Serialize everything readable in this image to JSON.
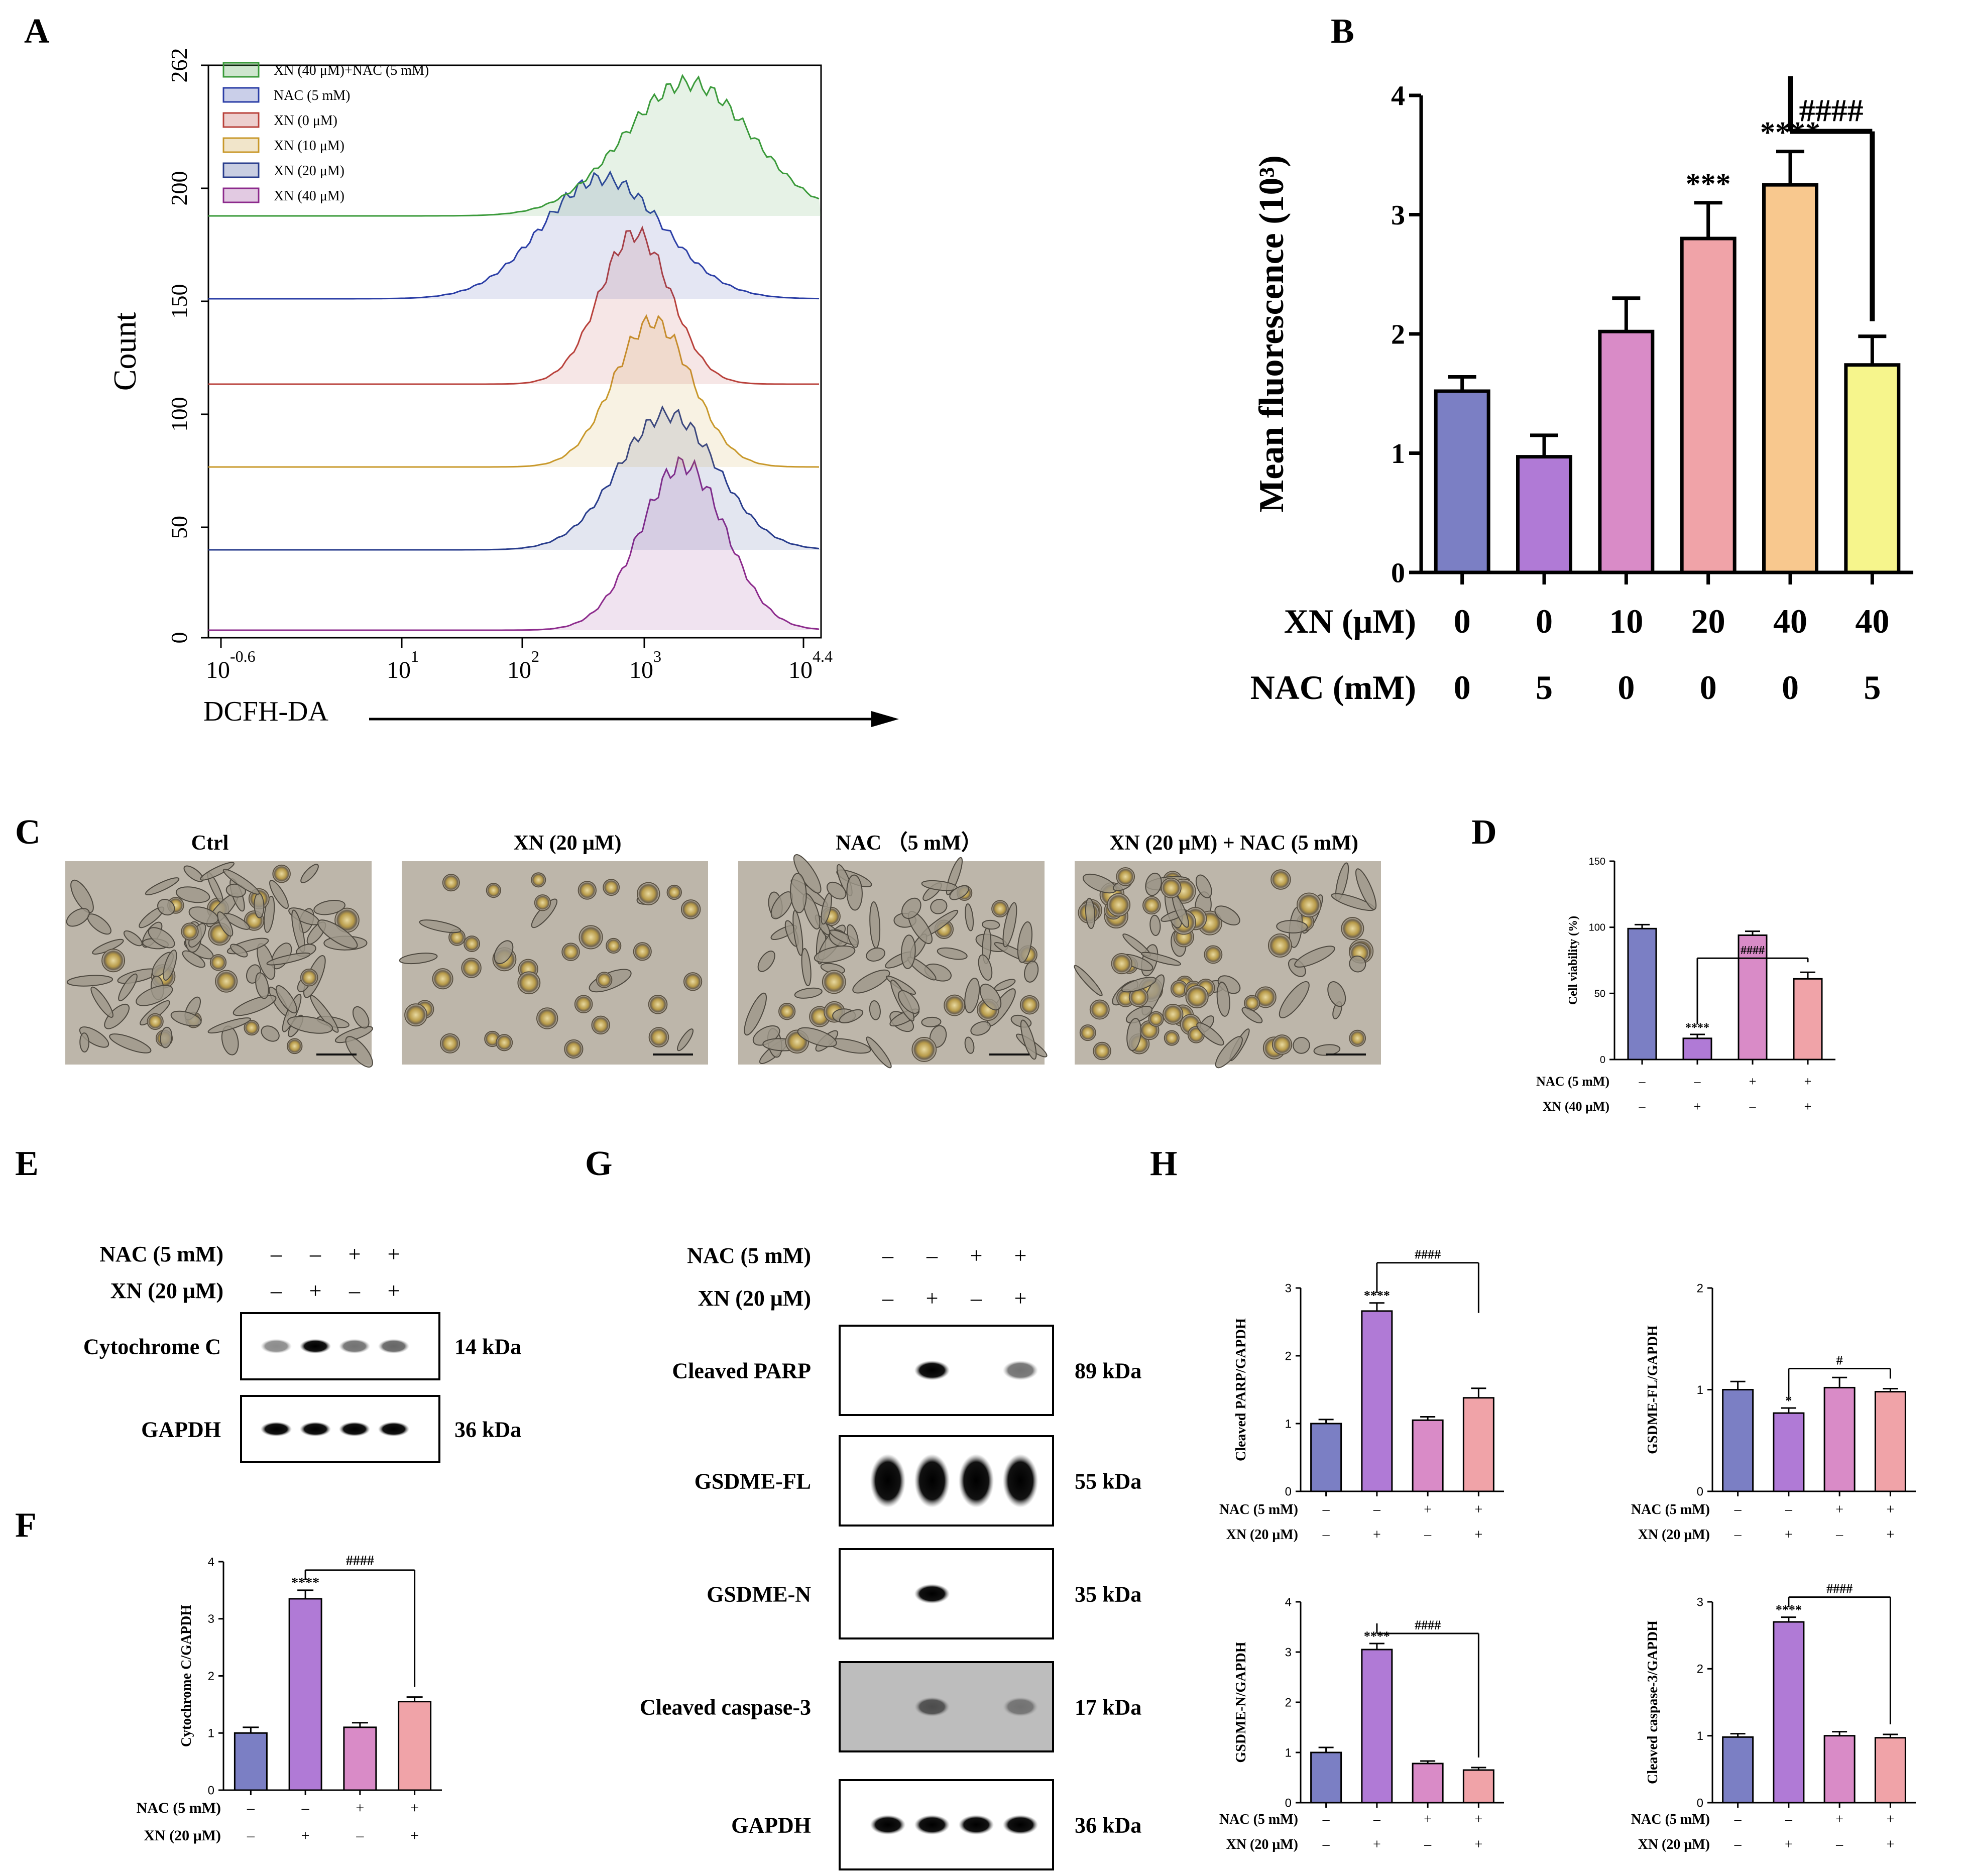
{
  "panels": {
    "A": "A",
    "B": "B",
    "C": "C",
    "D": "D",
    "E": "E",
    "F": "F",
    "G": "G",
    "H": "H"
  },
  "colors": {
    "purple_blue": "#7b7fc4",
    "violet": "#b07ad6",
    "pink": "#d98bc7",
    "salmon": "#f0a3a8",
    "orange": "#f8c88e",
    "yellow": "#f6f58c",
    "hist_green": "#3a9a3a",
    "hist_blue": "#2b3ea6",
    "hist_red": "#b8403a",
    "hist_gold": "#c8982a",
    "hist_navy": "#283c8c",
    "hist_magenta": "#8c2a8c"
  },
  "panel_a": {
    "legend": [
      "XN (40 μM)+NAC (5 mM)",
      "NAC (5 mM)",
      "XN (0 μM)",
      "XN (10 μM)",
      "XN (20 μM)",
      "XN (40 μM)"
    ],
    "y_label": "Count",
    "y_ticks": [
      "0",
      "50",
      "100",
      "150",
      "200",
      "262"
    ],
    "x_ticks": [
      "10",
      "10",
      "10",
      "10",
      "10"
    ],
    "x_tick_exponents": [
      "-0.6",
      "1",
      "2",
      "3",
      "4.4"
    ],
    "x_label": "DCFH-DA"
  },
  "chart_data": [
    {
      "panel": "B",
      "type": "bar",
      "ylabel": "Mean fluorescence (10³)",
      "ylim": [
        0,
        4
      ],
      "y_ticks": [
        "0",
        "1",
        "2",
        "3",
        "4"
      ],
      "categories": [
        "1",
        "2",
        "3",
        "4",
        "5",
        "6"
      ],
      "values": [
        1.52,
        0.97,
        2.02,
        2.8,
        3.25,
        1.74
      ],
      "errors": [
        0.12,
        0.18,
        0.28,
        0.3,
        0.28,
        0.24
      ],
      "annotations": [
        "",
        "",
        "",
        "***",
        "****",
        ""
      ],
      "bracket": {
        "from": 4,
        "to": 5,
        "label": "####"
      },
      "row1": {
        "label": "XN (μM)",
        "values": [
          "0",
          "0",
          "10",
          "20",
          "40",
          "40"
        ]
      },
      "row2": {
        "label": "NAC  (mM)",
        "values": [
          "0",
          "5",
          "0",
          "0",
          "0",
          "5"
        ]
      }
    },
    {
      "panel": "D",
      "type": "bar",
      "ylabel": "Cell viability (%)",
      "ylim": [
        0,
        150
      ],
      "y_ticks": [
        "0",
        "50",
        "100",
        "150"
      ],
      "categories": [
        "1",
        "2",
        "3",
        "4"
      ],
      "values": [
        99,
        16,
        94,
        61
      ],
      "errors": [
        3,
        3,
        3,
        5
      ],
      "annotations": [
        "",
        "****",
        "",
        ""
      ],
      "bracket": {
        "from": 1,
        "to": 3,
        "label": "####"
      },
      "row1": {
        "label": "NAC (5 mM)",
        "values": [
          "–",
          "–",
          "+",
          "+"
        ]
      },
      "row2": {
        "label": "XN (40 μM)",
        "values": [
          "–",
          "+",
          "–",
          "+"
        ]
      }
    },
    {
      "panel": "F",
      "type": "bar",
      "ylabel": "Cytochrome C/GAPDH",
      "ylim": [
        0,
        4
      ],
      "y_ticks": [
        "0",
        "1",
        "2",
        "3",
        "4"
      ],
      "categories": [
        "1",
        "2",
        "3",
        "4"
      ],
      "values": [
        1.0,
        3.35,
        1.1,
        1.55
      ],
      "errors": [
        0.1,
        0.15,
        0.08,
        0.08
      ],
      "annotations": [
        "",
        "****",
        "",
        ""
      ],
      "bracket": {
        "from": 1,
        "to": 3,
        "label": "####"
      },
      "row1": {
        "label": "NAC (5 mM)",
        "values": [
          "–",
          "–",
          "+",
          "+"
        ]
      },
      "row2": {
        "label": "XN (20 μM)",
        "values": [
          "–",
          "+",
          "–",
          "+"
        ]
      }
    },
    {
      "panel": "H1",
      "type": "bar",
      "ylabel": "Cleaved PARP/GAPDH",
      "ylim": [
        0,
        3
      ],
      "y_ticks": [
        "0",
        "1",
        "2",
        "3"
      ],
      "categories": [
        "1",
        "2",
        "3",
        "4"
      ],
      "values": [
        1.0,
        2.66,
        1.05,
        1.38
      ],
      "errors": [
        0.06,
        0.12,
        0.05,
        0.14
      ],
      "annotations": [
        "",
        "****",
        "",
        ""
      ],
      "bracket": {
        "from": 1,
        "to": 3,
        "label": "####"
      },
      "row1": {
        "label": "NAC (5 mM)",
        "values": [
          "–",
          "–",
          "+",
          "+"
        ]
      },
      "row2": {
        "label": "XN (20 μM)",
        "values": [
          "–",
          "+",
          "–",
          "+"
        ]
      }
    },
    {
      "panel": "H2",
      "type": "bar",
      "ylabel": "GSDME-FL/GAPDH",
      "ylim": [
        0,
        2
      ],
      "y_ticks": [
        "0",
        "1",
        "2"
      ],
      "categories": [
        "1",
        "2",
        "3",
        "4"
      ],
      "values": [
        1.0,
        0.77,
        1.02,
        0.98
      ],
      "errors": [
        0.08,
        0.05,
        0.1,
        0.03
      ],
      "annotations": [
        "",
        "*",
        "",
        ""
      ],
      "bracket": {
        "from": 1,
        "to": 3,
        "label": "#"
      },
      "row1": {
        "label": "NAC (5 mM)",
        "values": [
          "–",
          "–",
          "+",
          "+"
        ]
      },
      "row2": {
        "label": "XN (20 μM)",
        "values": [
          "–",
          "+",
          "–",
          "+"
        ]
      }
    },
    {
      "panel": "H3",
      "type": "bar",
      "ylabel": "GSDME-N/GAPDH",
      "ylim": [
        0,
        4
      ],
      "y_ticks": [
        "0",
        "1",
        "2",
        "3",
        "4"
      ],
      "categories": [
        "1",
        "2",
        "3",
        "4"
      ],
      "values": [
        1.0,
        3.05,
        0.78,
        0.65
      ],
      "errors": [
        0.1,
        0.12,
        0.05,
        0.05
      ],
      "annotations": [
        "",
        "****",
        "",
        ""
      ],
      "bracket": {
        "from": 1,
        "to": 3,
        "label": "####"
      },
      "row1": {
        "label": "NAC (5 mM)",
        "values": [
          "–",
          "–",
          "+",
          "+"
        ]
      },
      "row2": {
        "label": "XN (20 μM)",
        "values": [
          "–",
          "+",
          "–",
          "+"
        ]
      }
    },
    {
      "panel": "H4",
      "type": "bar",
      "ylabel": "Cleaved caspase-3/GAPDH",
      "ylim": [
        0,
        3
      ],
      "y_ticks": [
        "0",
        "1",
        "2",
        "3"
      ],
      "categories": [
        "1",
        "2",
        "3",
        "4"
      ],
      "values": [
        0.98,
        2.7,
        1.0,
        0.97
      ],
      "errors": [
        0.05,
        0.07,
        0.06,
        0.05
      ],
      "annotations": [
        "",
        "****",
        "",
        ""
      ],
      "bracket": {
        "from": 1,
        "to": 3,
        "label": "####"
      },
      "row1": {
        "label": "NAC (5 mM)",
        "values": [
          "–",
          "–",
          "+",
          "+"
        ]
      },
      "row2": {
        "label": "XN (20 μM)",
        "values": [
          "–",
          "+",
          "–",
          "+"
        ]
      }
    }
  ],
  "panel_c": {
    "titles": [
      "Ctrl",
      "XN (20 μM)",
      "NAC （5 mM）",
      "XN (20 μM) + NAC (5 mM)"
    ]
  },
  "panel_e": {
    "rows": [
      {
        "label": "NAC (5 mM)",
        "signs": [
          "–",
          "–",
          "+",
          "+"
        ]
      },
      {
        "label": "XN (20 μM)",
        "signs": [
          "–",
          "+",
          "–",
          "+"
        ]
      }
    ],
    "blots": [
      {
        "name": "Cytochrome C",
        "kda": "14 kDa",
        "intensity": [
          0.45,
          1.0,
          0.55,
          0.6
        ]
      },
      {
        "name": "GAPDH",
        "kda": "36 kDa",
        "intensity": [
          1.0,
          1.0,
          1.0,
          1.0
        ]
      }
    ]
  },
  "panel_g": {
    "rows": [
      {
        "label": "NAC (5 mM)",
        "signs": [
          "–",
          "–",
          "+",
          "+"
        ]
      },
      {
        "label": "XN (20 μM)",
        "signs": [
          "–",
          "+",
          "–",
          "+"
        ]
      }
    ],
    "blots": [
      {
        "name": "Cleaved PARP",
        "kda": "89 kDa",
        "intensity": [
          0.0,
          1.0,
          0.0,
          0.55
        ]
      },
      {
        "name": "GSDME-FL",
        "kda": "55 kDa",
        "intensity": [
          1.0,
          1.0,
          1.0,
          1.0
        ]
      },
      {
        "name": "GSDME-N",
        "kda": "35 kDa",
        "intensity": [
          0.0,
          1.0,
          0.0,
          0.0
        ]
      },
      {
        "name": "Cleaved caspase-3",
        "kda": "17 kDa",
        "intensity": [
          0.0,
          0.6,
          0.0,
          0.4
        ]
      },
      {
        "name": "GAPDH",
        "kda": "36 kDa",
        "intensity": [
          1.0,
          1.0,
          1.0,
          1.0
        ]
      }
    ]
  }
}
